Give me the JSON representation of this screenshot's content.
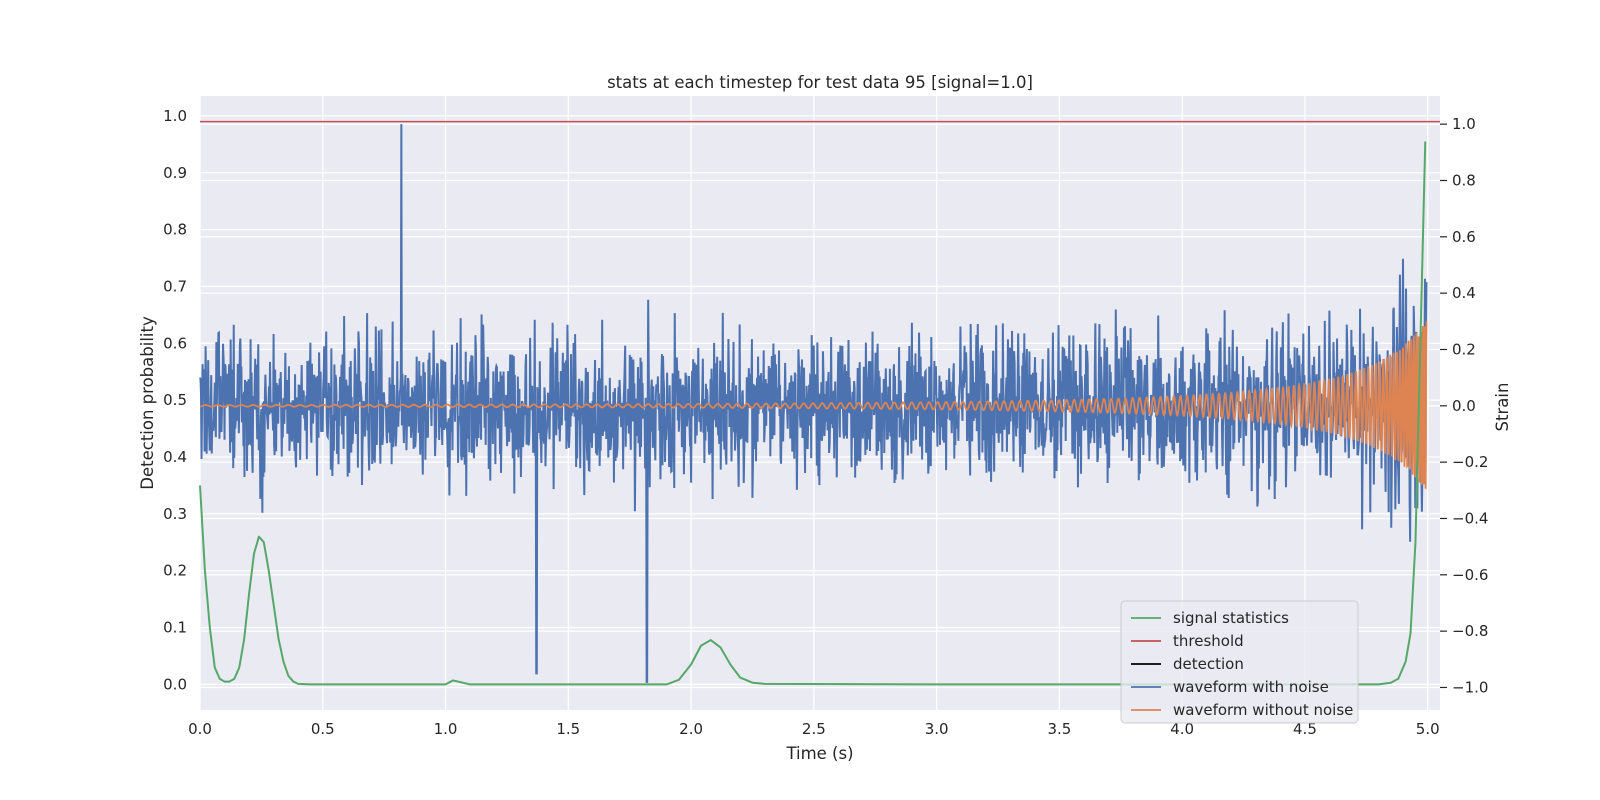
{
  "chart_data": {
    "type": "line",
    "title": "stats at each timestep for test data 95 [signal=1.0]",
    "xlabel": "Time (s)",
    "ylabel_left": "Detection probability",
    "ylabel_right": "Strain",
    "xlim": [
      0.0,
      5.05
    ],
    "ylim_left": [
      -0.045,
      1.035
    ],
    "ylim_right": [
      -1.08,
      1.1
    ],
    "x_ticks": [
      0.0,
      0.5,
      1.0,
      1.5,
      2.0,
      2.5,
      3.0,
      3.5,
      4.0,
      4.5,
      5.0
    ],
    "x_tick_labels": [
      "0.0",
      "0.5",
      "1.0",
      "1.5",
      "2.0",
      "2.5",
      "3.0",
      "3.5",
      "4.0",
      "4.5",
      "5.0"
    ],
    "y_left_ticks": [
      0.0,
      0.1,
      0.2,
      0.3,
      0.4,
      0.5,
      0.6,
      0.7,
      0.8,
      0.9,
      1.0
    ],
    "y_left_tick_labels": [
      "0.0",
      "0.1",
      "0.2",
      "0.3",
      "0.4",
      "0.5",
      "0.6",
      "0.7",
      "0.8",
      "0.9",
      "1.0"
    ],
    "y_right_ticks": [
      -1.0,
      -0.8,
      -0.6,
      -0.4,
      -0.2,
      0.0,
      0.2,
      0.4,
      0.6,
      0.8,
      1.0
    ],
    "y_right_tick_labels": [
      "−1.0",
      "−0.8",
      "−0.6",
      "−0.4",
      "−0.2",
      "0.0",
      "0.2",
      "0.4",
      "0.6",
      "0.8",
      "1.0"
    ],
    "grid": true,
    "legend_position": "lower-right",
    "series": [
      {
        "name": "signal statistics",
        "axis": "left",
        "color": "#55a868",
        "x": [
          0.0,
          0.02,
          0.04,
          0.06,
          0.08,
          0.1,
          0.12,
          0.14,
          0.16,
          0.18,
          0.2,
          0.22,
          0.24,
          0.26,
          0.28,
          0.3,
          0.32,
          0.34,
          0.36,
          0.38,
          0.4,
          0.45,
          0.5,
          1.0,
          1.03,
          1.06,
          1.1,
          1.2,
          1.5,
          1.9,
          1.95,
          2.0,
          2.04,
          2.08,
          2.12,
          2.16,
          2.2,
          2.25,
          2.3,
          3.0,
          3.5,
          4.0,
          4.5,
          4.8,
          4.85,
          4.88,
          4.91,
          4.93,
          4.95,
          4.97,
          4.99
        ],
        "values": [
          0.35,
          0.2,
          0.1,
          0.03,
          0.01,
          0.005,
          0.005,
          0.01,
          0.03,
          0.08,
          0.16,
          0.23,
          0.26,
          0.25,
          0.2,
          0.14,
          0.08,
          0.04,
          0.015,
          0.005,
          0.001,
          0.0,
          0.0,
          0.0,
          0.007,
          0.004,
          0.0,
          0.0,
          0.0,
          0.0,
          0.008,
          0.035,
          0.068,
          0.078,
          0.065,
          0.035,
          0.012,
          0.003,
          0.001,
          0.0,
          0.0,
          0.0,
          0.0,
          0.0,
          0.003,
          0.01,
          0.04,
          0.09,
          0.25,
          0.6,
          0.955
        ]
      },
      {
        "name": "threshold",
        "axis": "left",
        "color": "#c44e52",
        "x": [
          0.0,
          5.05
        ],
        "values": [
          0.99,
          0.99
        ]
      },
      {
        "name": "detection",
        "axis": "left",
        "color": "#000000",
        "x": [],
        "values": []
      },
      {
        "name": "waveform with noise",
        "axis": "right",
        "color": "#4c72b0",
        "x": [],
        "values": []
      },
      {
        "name": "waveform without noise",
        "axis": "right",
        "color": "#dd8452",
        "x": [],
        "values": []
      }
    ]
  }
}
